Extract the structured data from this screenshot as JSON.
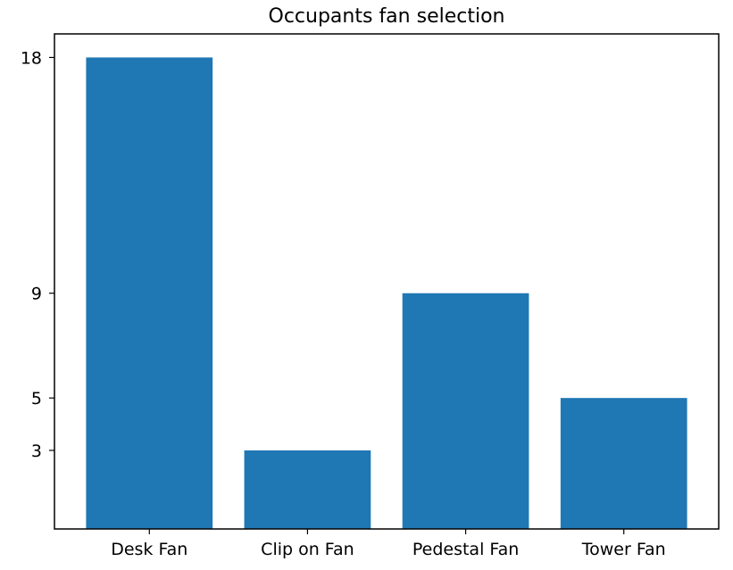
{
  "chart_data": {
    "type": "bar",
    "title": "Occupants fan selection",
    "xlabel": "",
    "ylabel": "",
    "categories": [
      "Desk Fan",
      "Clip on Fan",
      "Pedestal Fan",
      "Tower Fan"
    ],
    "values": [
      18,
      3,
      9,
      5
    ],
    "yticks": [
      3,
      5,
      9,
      18
    ],
    "ylim": [
      0,
      18.9
    ],
    "grid": false,
    "legend": "none",
    "bar_color": "#1f77b4"
  }
}
